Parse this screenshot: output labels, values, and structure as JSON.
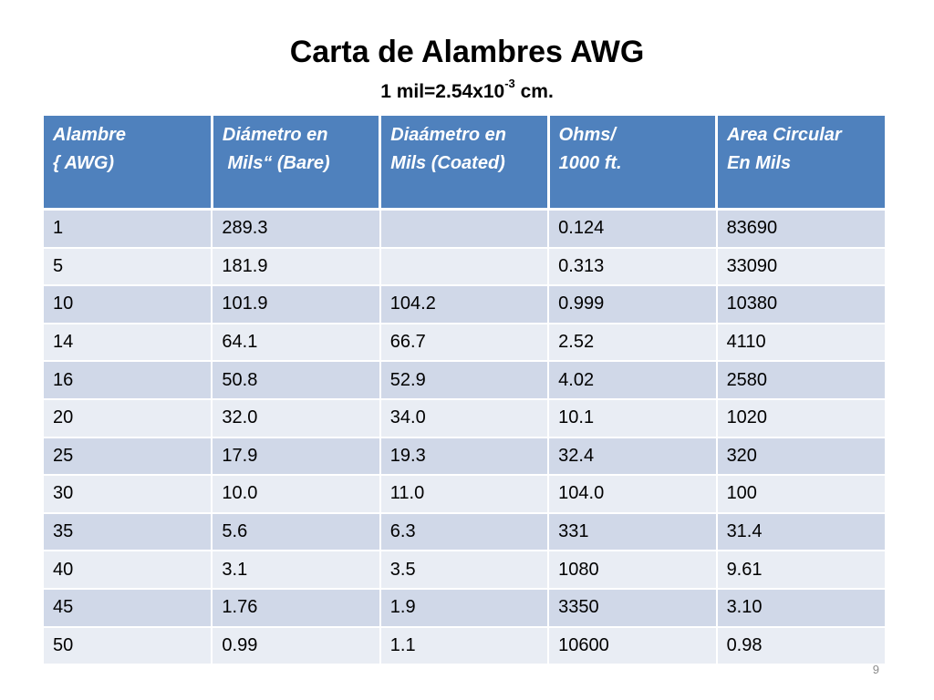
{
  "title": "Carta de Alambres AWG",
  "subtitle": {
    "prefix": "1 mil=2.54x10",
    "exponent": "-3",
    "suffix": " cm."
  },
  "table": {
    "headers": [
      "Alambre\n{ AWG)",
      "Diámetro en\n Mils“ (Bare)",
      "Diaámetro en\nMils (Coated)",
      "Ohms/\n1000 ft.",
      "Area Circular\nEn Mils"
    ],
    "rows": [
      [
        "1",
        "289.3",
        "",
        "0.124",
        "83690"
      ],
      [
        "5",
        "181.9",
        "",
        "0.313",
        "33090"
      ],
      [
        "10",
        "101.9",
        "104.2",
        "0.999",
        "10380"
      ],
      [
        "14",
        "64.1",
        "66.7",
        "2.52",
        "4110"
      ],
      [
        "16",
        "50.8",
        "52.9",
        "4.02",
        "2580"
      ],
      [
        "20",
        "32.0",
        "34.0",
        "10.1",
        "1020"
      ],
      [
        "25",
        "17.9",
        "19.3",
        "32.4",
        "320"
      ],
      [
        "30",
        "10.0",
        "11.0",
        "104.0",
        "100"
      ],
      [
        "35",
        "5.6",
        "6.3",
        "331",
        "31.4"
      ],
      [
        "40",
        "3.1",
        "3.5",
        "1080",
        "9.61"
      ],
      [
        "45",
        "1.76",
        "1.9",
        "3350",
        "3.10"
      ],
      [
        "50",
        "0.99",
        "1.1",
        "10600",
        "0.98"
      ]
    ]
  },
  "page_number": "9",
  "colors": {
    "header_bg": "#4f81bd",
    "row_odd": "#d0d8e8",
    "row_even": "#e9edf4"
  }
}
